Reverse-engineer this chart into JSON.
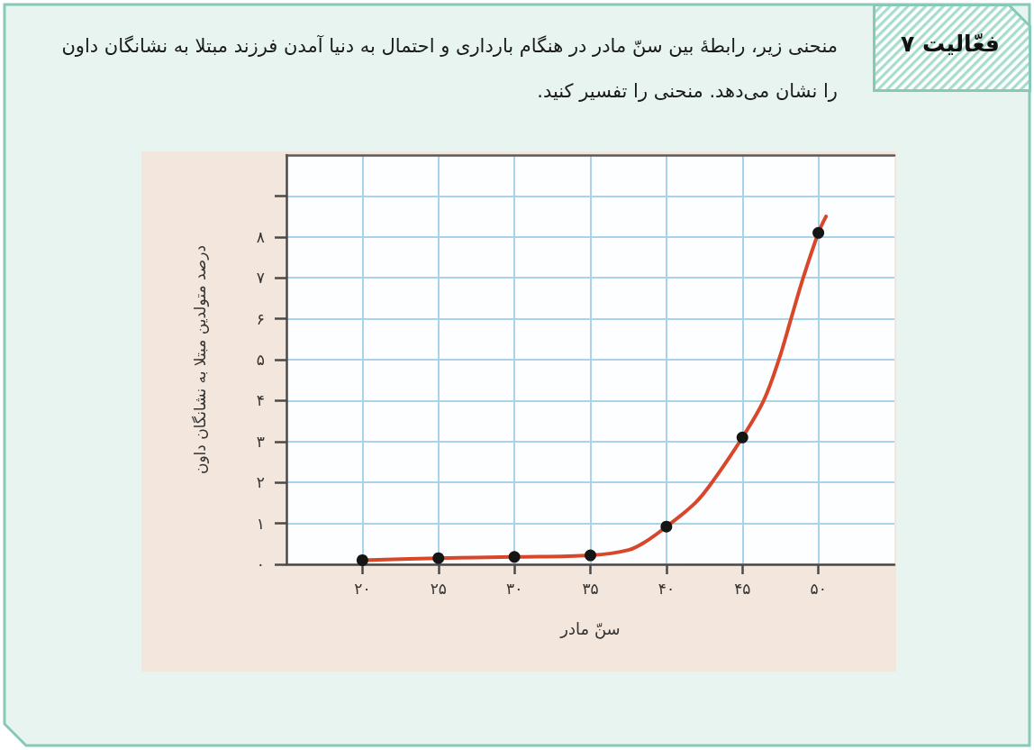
{
  "chart_data": {
    "type": "line",
    "title": "فعّالیت ۷",
    "subtitle": "منحنی زیر، رابطهٔ بین سنّ مادر در هنگام بارداری و احتمال به دنیا آمدن فرزند مبتلا به نشانگان داون را نشان می‌دهد. منحنی را تفسیر کنید.",
    "xlabel": "سنّ مادر",
    "ylabel": "درصد متولدین مبتلا به نشانگان داون",
    "xlim": [
      15,
      55
    ],
    "xticks": [
      {
        "value": 20,
        "label": "۲۰"
      },
      {
        "value": 25,
        "label": "۲۵"
      },
      {
        "value": 30,
        "label": "۳۰"
      },
      {
        "value": 35,
        "label": "۳۵"
      },
      {
        "value": 40,
        "label": "۴۰"
      },
      {
        "value": 45,
        "label": "۴۵"
      },
      {
        "value": 50,
        "label": "۵۰"
      }
    ],
    "ylim": [
      0,
      10
    ],
    "yticks": [
      {
        "value": 0,
        "label": "۰"
      },
      {
        "value": 1,
        "label": "۱"
      },
      {
        "value": 2,
        "label": "۲"
      },
      {
        "value": 3,
        "label": "۳"
      },
      {
        "value": 4,
        "label": "۴"
      },
      {
        "value": 5,
        "label": "۵"
      },
      {
        "value": 6,
        "label": "۶"
      },
      {
        "value": 7,
        "label": "۷"
      },
      {
        "value": 8,
        "label": "۸"
      },
      {
        "value": 9,
        "label": null
      }
    ],
    "grid": true,
    "series": [
      {
        "color": "#d9472b",
        "marker": "none",
        "x": [
          20,
          25,
          30,
          35,
          37.5,
          38.7,
          40,
          41.9,
          43,
          45,
          46.4,
          47.4,
          48.2,
          49,
          50,
          50.5
        ],
        "values": [
          0.1,
          0.15,
          0.18,
          0.22,
          0.35,
          0.57,
          0.92,
          1.5,
          2,
          3.1,
          4,
          5,
          6,
          7,
          8.1,
          8.5
        ]
      },
      {
        "type": "scatter",
        "color": "#151515",
        "marker": "circle",
        "x": [
          20,
          25,
          30,
          35,
          40,
          45,
          50
        ],
        "values": [
          0.1,
          0.15,
          0.18,
          0.22,
          0.92,
          3.1,
          8.1
        ]
      }
    ]
  }
}
